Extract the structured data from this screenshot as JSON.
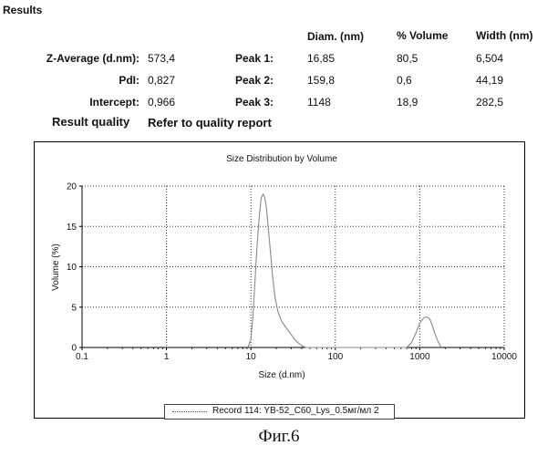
{
  "results": {
    "heading": "Results",
    "columns": [
      "Diam. (nm)",
      "% Volume",
      "Width (nm)"
    ],
    "rows": [
      {
        "label": "Z-Average (d.nm):",
        "value": "573,4",
        "peak": "Peak 1:",
        "diam": "16,85",
        "volume": "80,5",
        "width": "6,504"
      },
      {
        "label": "PdI:",
        "value": "0,827",
        "peak": "Peak 2:",
        "diam": "159,8",
        "volume": "0,6",
        "width": "44,19"
      },
      {
        "label": "Intercept:",
        "value": "0,966",
        "peak": "Peak 3:",
        "diam": "1148",
        "volume": "18,9",
        "width": "282,5"
      }
    ],
    "quality_label": "Result quality",
    "quality_value": "Refer to quality report"
  },
  "chart_data": {
    "type": "line",
    "title": "Size Distribution by Volume",
    "xlabel": "Size (d.nm)",
    "ylabel": "Volume (%)",
    "x_scale": "log",
    "xlim": [
      0.1,
      10000
    ],
    "ylim": [
      0,
      20
    ],
    "x_ticks": [
      0.1,
      1,
      10,
      100,
      1000,
      10000
    ],
    "x_tick_labels": [
      "0.1",
      "1",
      "10",
      "100",
      "1000",
      "10000"
    ],
    "y_ticks": [
      0,
      5,
      10,
      15,
      20
    ],
    "y_tick_labels": [
      "0",
      "5",
      "10",
      "15",
      "20"
    ],
    "grid": true,
    "legend_position": "bottom",
    "line_color": "#888888",
    "series": [
      {
        "name": "Record 114: YB-52_C60_Lys_0.5мг/мл 2",
        "x": [
          9.2,
          10,
          10.6,
          11.2,
          11.8,
          12.5,
          13.2,
          14,
          14.6,
          15.2,
          16,
          17,
          18,
          19.3,
          21,
          23,
          25.5,
          29,
          33,
          37,
          40,
          45,
          50,
          700,
          800,
          900,
          1000,
          1100,
          1200,
          1300,
          1400,
          1500,
          1650,
          1800
        ],
        "y": [
          0,
          1,
          4,
          8.5,
          12.5,
          16,
          18.5,
          19,
          18.5,
          17.5,
          15,
          12,
          9,
          6.2,
          4.4,
          3.3,
          2.6,
          1.8,
          1,
          0.5,
          0.2,
          0,
          0,
          0,
          0.6,
          1.8,
          3,
          3.6,
          3.8,
          3.6,
          2.8,
          1.8,
          0.7,
          0
        ]
      }
    ]
  },
  "caption": "Фиг.6"
}
